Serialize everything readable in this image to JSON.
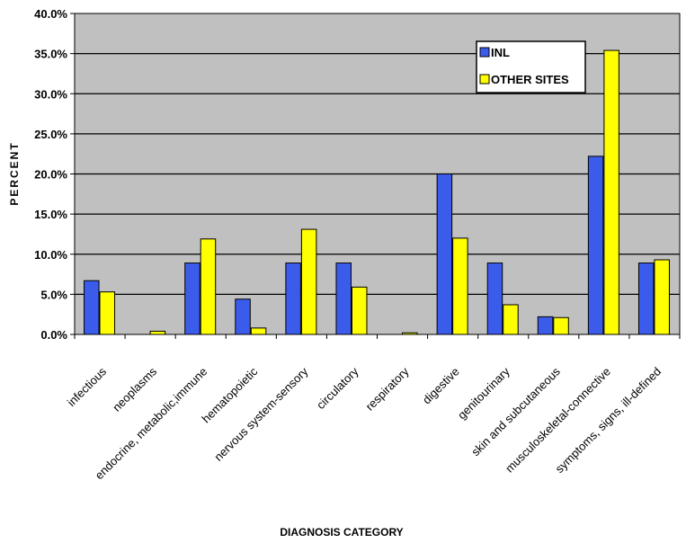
{
  "colors": {
    "plot_background": "#C0C0C0",
    "gridline": "#000000",
    "series_inl": "#3B5BEB",
    "series_other": "#FFFF00",
    "bar_edge": "#000000"
  },
  "chart_data": {
    "type": "bar",
    "title": "",
    "xlabel": "DIAGNOSIS CATEGORY",
    "ylabel": "PERCENT",
    "ylim": [
      0,
      40
    ],
    "y_ticks": [
      "0.0%",
      "5.0%",
      "10.0%",
      "15.0%",
      "20.0%",
      "25.0%",
      "30.0%",
      "35.0%",
      "40.0%"
    ],
    "grid": true,
    "legend_position": "top-right",
    "categories": [
      "infectious",
      "neoplasms",
      "endocrine, metabolic,immune",
      "hematopoietic",
      "nervous system-sensory",
      "circulatory",
      "respiratory",
      "digestive",
      "genitourinary",
      "skin and subcutaneous",
      "musculoskeletal-connective",
      "symptoms, signs, ill-defined"
    ],
    "series": [
      {
        "name": "INL",
        "values": [
          6.7,
          0,
          8.9,
          4.4,
          8.9,
          8.9,
          0,
          20.0,
          8.9,
          2.2,
          22.2,
          8.9
        ]
      },
      {
        "name": "OTHER SITES",
        "values": [
          5.3,
          0.4,
          11.9,
          0.8,
          13.1,
          5.9,
          0.2,
          12.0,
          3.7,
          2.1,
          35.4,
          9.3
        ]
      }
    ]
  }
}
